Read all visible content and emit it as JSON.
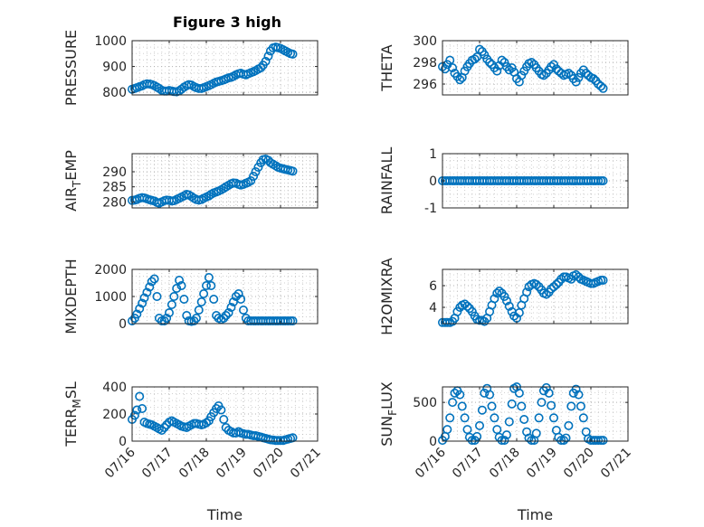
{
  "figure": {
    "title": "Figure 3 high"
  },
  "theme": {
    "marker_color": "#0072bd",
    "axis_color": "#262626",
    "grid_color": "#b0b0b0"
  },
  "chart_data": [
    {
      "type": "scatter",
      "ylabel": "PRESSURE",
      "ylim": [
        790,
        1000
      ],
      "yticks": [
        800,
        900,
        1000
      ],
      "xlim": [
        0,
        5
      ],
      "xticks": [
        0,
        1,
        2,
        3,
        4,
        5
      ],
      "show_xticklabels": false,
      "grid": true,
      "x": [
        0.0,
        0.07,
        0.13,
        0.2,
        0.27,
        0.33,
        0.4,
        0.47,
        0.53,
        0.6,
        0.67,
        0.73,
        0.8,
        0.87,
        0.93,
        1.0,
        1.07,
        1.13,
        1.2,
        1.27,
        1.33,
        1.4,
        1.47,
        1.53,
        1.6,
        1.67,
        1.73,
        1.8,
        1.87,
        1.93,
        2.0,
        2.07,
        2.13,
        2.2,
        2.27,
        2.33,
        2.4,
        2.47,
        2.53,
        2.6,
        2.67,
        2.73,
        2.8,
        2.87,
        2.93,
        3.0,
        3.07,
        3.13,
        3.2,
        3.27,
        3.33,
        3.4,
        3.47,
        3.53,
        3.6,
        3.67,
        3.73,
        3.8,
        3.87,
        3.93,
        4.0,
        4.07,
        4.13,
        4.2,
        4.27,
        4.33
      ],
      "y": [
        812,
        815,
        818,
        822,
        825,
        830,
        833,
        832,
        830,
        826,
        820,
        815,
        808,
        805,
        805,
        807,
        805,
        803,
        802,
        806,
        812,
        820,
        826,
        830,
        828,
        822,
        818,
        815,
        815,
        818,
        822,
        826,
        830,
        835,
        840,
        842,
        845,
        848,
        852,
        856,
        858,
        862,
        868,
        872,
        874,
        870,
        868,
        872,
        876,
        880,
        884,
        890,
        895,
        905,
        920,
        940,
        960,
        972,
        975,
        973,
        970,
        965,
        960,
        955,
        950,
        948
      ]
    },
    {
      "type": "scatter",
      "ylabel": "THETA",
      "ylim": [
        295,
        300
      ],
      "yticks": [
        296,
        298,
        300
      ],
      "xlim": [
        0,
        5
      ],
      "xticks": [
        0,
        1,
        2,
        3,
        4,
        5
      ],
      "show_xticklabels": false,
      "grid": true,
      "x": [
        0.0,
        0.07,
        0.13,
        0.2,
        0.27,
        0.33,
        0.4,
        0.47,
        0.53,
        0.6,
        0.67,
        0.73,
        0.8,
        0.87,
        0.93,
        1.0,
        1.07,
        1.13,
        1.2,
        1.27,
        1.33,
        1.4,
        1.47,
        1.53,
        1.6,
        1.67,
        1.73,
        1.8,
        1.87,
        1.93,
        2.0,
        2.07,
        2.13,
        2.2,
        2.27,
        2.33,
        2.4,
        2.47,
        2.53,
        2.6,
        2.67,
        2.73,
        2.8,
        2.87,
        2.93,
        3.0,
        3.07,
        3.13,
        3.2,
        3.27,
        3.33,
        3.4,
        3.47,
        3.53,
        3.6,
        3.67,
        3.73,
        3.8,
        3.87,
        3.93,
        4.0,
        4.07,
        4.13,
        4.2,
        4.27,
        4.33
      ],
      "y": [
        297.6,
        297.4,
        297.8,
        298.2,
        297.5,
        297.0,
        296.7,
        296.4,
        296.6,
        297.2,
        297.6,
        297.9,
        298.2,
        298.3,
        298.5,
        299.2,
        299.0,
        298.7,
        298.3,
        298.0,
        297.8,
        297.5,
        297.2,
        297.7,
        298.2,
        298.0,
        297.6,
        297.3,
        297.5,
        297.1,
        296.5,
        296.2,
        296.8,
        297.2,
        297.6,
        297.9,
        298.0,
        297.8,
        297.5,
        297.2,
        296.9,
        296.8,
        297.0,
        297.3,
        297.6,
        297.8,
        297.4,
        297.2,
        297.0,
        296.8,
        296.9,
        297.0,
        296.8,
        296.5,
        296.2,
        296.6,
        297.0,
        297.3,
        297.0,
        296.8,
        296.6,
        296.5,
        296.3,
        296.0,
        295.8,
        295.6
      ]
    },
    {
      "type": "scatter",
      "ylabel": "AIR_TEMP",
      "ylim": [
        278,
        296
      ],
      "yticks": [
        280,
        285,
        290
      ],
      "xlim": [
        0,
        5
      ],
      "xticks": [
        0,
        1,
        2,
        3,
        4,
        5
      ],
      "show_xticklabels": false,
      "grid": true,
      "x": [
        0.0,
        0.07,
        0.13,
        0.2,
        0.27,
        0.33,
        0.4,
        0.47,
        0.53,
        0.6,
        0.67,
        0.73,
        0.8,
        0.87,
        0.93,
        1.0,
        1.07,
        1.13,
        1.2,
        1.27,
        1.33,
        1.4,
        1.47,
        1.53,
        1.6,
        1.67,
        1.73,
        1.8,
        1.87,
        1.93,
        2.0,
        2.07,
        2.13,
        2.2,
        2.27,
        2.33,
        2.4,
        2.47,
        2.53,
        2.6,
        2.67,
        2.73,
        2.8,
        2.87,
        2.93,
        3.0,
        3.07,
        3.13,
        3.2,
        3.27,
        3.33,
        3.4,
        3.47,
        3.53,
        3.6,
        3.67,
        3.73,
        3.8,
        3.87,
        3.93,
        4.0,
        4.07,
        4.13,
        4.2,
        4.27,
        4.33
      ],
      "y": [
        280.5,
        280.6,
        280.8,
        281.2,
        281.4,
        281.3,
        281.0,
        280.7,
        280.5,
        280.3,
        279.8,
        279.6,
        280.0,
        280.4,
        280.6,
        280.5,
        280.3,
        280.4,
        280.8,
        281.2,
        281.6,
        282.0,
        282.5,
        282.3,
        281.8,
        281.2,
        280.8,
        280.6,
        280.8,
        281.2,
        281.6,
        282.0,
        282.5,
        283.0,
        283.3,
        283.6,
        284.0,
        284.5,
        285.0,
        285.5,
        286.0,
        286.3,
        286.2,
        285.8,
        285.6,
        285.8,
        286.2,
        286.5,
        287.0,
        288.5,
        290.0,
        291.5,
        293.0,
        294.0,
        294.2,
        293.8,
        293.0,
        292.5,
        292.0,
        291.5,
        291.2,
        291.0,
        290.8,
        290.6,
        290.4,
        290.2
      ]
    },
    {
      "type": "scatter",
      "ylabel": "RAINFALL",
      "ylim": [
        -1,
        1
      ],
      "yticks": [
        -1,
        0,
        1
      ],
      "xlim": [
        0,
        5
      ],
      "xticks": [
        0,
        1,
        2,
        3,
        4,
        5
      ],
      "show_xticklabels": false,
      "grid": true,
      "x": [
        0.0,
        0.07,
        0.13,
        0.2,
        0.27,
        0.33,
        0.4,
        0.47,
        0.53,
        0.6,
        0.67,
        0.73,
        0.8,
        0.87,
        0.93,
        1.0,
        1.07,
        1.13,
        1.2,
        1.27,
        1.33,
        1.4,
        1.47,
        1.53,
        1.6,
        1.67,
        1.73,
        1.8,
        1.87,
        1.93,
        2.0,
        2.07,
        2.13,
        2.2,
        2.27,
        2.33,
        2.4,
        2.47,
        2.53,
        2.6,
        2.67,
        2.73,
        2.8,
        2.87,
        2.93,
        3.0,
        3.07,
        3.13,
        3.2,
        3.27,
        3.33,
        3.4,
        3.47,
        3.53,
        3.6,
        3.67,
        3.73,
        3.8,
        3.87,
        3.93,
        4.0,
        4.07,
        4.13,
        4.2,
        4.27,
        4.33
      ],
      "y": [
        0,
        0,
        0,
        0,
        0,
        0,
        0,
        0,
        0,
        0,
        0,
        0,
        0,
        0,
        0,
        0,
        0,
        0,
        0,
        0,
        0,
        0,
        0,
        0,
        0,
        0,
        0,
        0,
        0,
        0,
        0,
        0,
        0,
        0,
        0,
        0,
        0,
        0,
        0,
        0,
        0,
        0,
        0,
        0,
        0,
        0,
        0,
        0,
        0,
        0,
        0,
        0,
        0,
        0,
        0,
        0,
        0,
        0,
        0,
        0,
        0,
        0,
        0,
        0,
        0,
        0
      ]
    },
    {
      "type": "scatter",
      "ylabel": "MIXDEPTH",
      "ylim": [
        0,
        2000
      ],
      "yticks": [
        0,
        1000,
        2000
      ],
      "xlim": [
        0,
        5
      ],
      "xticks": [
        0,
        1,
        2,
        3,
        4,
        5
      ],
      "show_xticklabels": false,
      "grid": true,
      "x": [
        0.0,
        0.07,
        0.13,
        0.2,
        0.27,
        0.33,
        0.4,
        0.47,
        0.53,
        0.6,
        0.67,
        0.73,
        0.8,
        0.87,
        0.93,
        1.0,
        1.07,
        1.13,
        1.2,
        1.27,
        1.33,
        1.4,
        1.47,
        1.53,
        1.6,
        1.67,
        1.73,
        1.8,
        1.87,
        1.93,
        2.0,
        2.07,
        2.13,
        2.2,
        2.27,
        2.33,
        2.4,
        2.47,
        2.53,
        2.6,
        2.67,
        2.73,
        2.8,
        2.87,
        2.93,
        3.0,
        3.07,
        3.13,
        3.2,
        3.27,
        3.33,
        3.4,
        3.47,
        3.53,
        3.6,
        3.67,
        3.73,
        3.8,
        3.87,
        3.93,
        4.0,
        4.07,
        4.13,
        4.2,
        4.27,
        4.33
      ],
      "y": [
        100,
        200,
        350,
        550,
        750,
        950,
        1150,
        1350,
        1550,
        1650,
        1000,
        200,
        100,
        100,
        200,
        400,
        700,
        1000,
        1300,
        1600,
        1400,
        900,
        300,
        100,
        80,
        100,
        200,
        500,
        800,
        1100,
        1400,
        1700,
        1400,
        900,
        300,
        200,
        150,
        200,
        300,
        400,
        600,
        800,
        1000,
        1100,
        900,
        500,
        200,
        100,
        100,
        100,
        100,
        100,
        100,
        100,
        100,
        100,
        100,
        100,
        100,
        100,
        100,
        100,
        100,
        100,
        100,
        100
      ]
    },
    {
      "type": "scatter",
      "ylabel": "H2OMIXRA",
      "ylim": [
        2.5,
        7.5
      ],
      "yticks": [
        4,
        6
      ],
      "xlim": [
        0,
        5
      ],
      "xticks": [
        0,
        1,
        2,
        3,
        4,
        5
      ],
      "show_xticklabels": false,
      "grid": true,
      "x": [
        0.0,
        0.07,
        0.13,
        0.2,
        0.27,
        0.33,
        0.4,
        0.47,
        0.53,
        0.6,
        0.67,
        0.73,
        0.8,
        0.87,
        0.93,
        1.0,
        1.07,
        1.13,
        1.2,
        1.27,
        1.33,
        1.4,
        1.47,
        1.53,
        1.6,
        1.67,
        1.73,
        1.8,
        1.87,
        1.93,
        2.0,
        2.07,
        2.13,
        2.2,
        2.27,
        2.33,
        2.4,
        2.47,
        2.53,
        2.6,
        2.67,
        2.73,
        2.8,
        2.87,
        2.93,
        3.0,
        3.07,
        3.13,
        3.2,
        3.27,
        3.33,
        3.4,
        3.47,
        3.53,
        3.6,
        3.67,
        3.73,
        3.8,
        3.87,
        3.93,
        4.0,
        4.07,
        4.13,
        4.2,
        4.27,
        4.33
      ],
      "y": [
        2.6,
        2.6,
        2.6,
        2.6,
        2.7,
        3.0,
        3.6,
        4.0,
        4.2,
        4.3,
        4.1,
        3.9,
        3.6,
        3.2,
        2.9,
        2.8,
        2.8,
        2.7,
        3.0,
        3.6,
        4.2,
        4.8,
        5.3,
        5.5,
        5.3,
        5.0,
        4.6,
        4.1,
        3.6,
        3.2,
        3.0,
        3.5,
        4.2,
        4.8,
        5.4,
        5.9,
        6.1,
        6.2,
        6.1,
        5.9,
        5.6,
        5.3,
        5.2,
        5.4,
        5.7,
        5.9,
        6.1,
        6.3,
        6.6,
        6.8,
        6.8,
        6.7,
        6.6,
        6.9,
        7.0,
        6.8,
        6.6,
        6.5,
        6.4,
        6.3,
        6.2,
        6.2,
        6.3,
        6.4,
        6.5,
        6.5
      ]
    },
    {
      "type": "scatter",
      "ylabel": "TERR_MSL",
      "ylim": [
        0,
        400
      ],
      "yticks": [
        0,
        200,
        400
      ],
      "xlim": [
        0,
        5
      ],
      "xticks": [
        0,
        1,
        2,
        3,
        4,
        5
      ],
      "show_xticklabels": true,
      "grid": true,
      "xticklabels": [
        "07/16",
        "07/17",
        "07/18",
        "07/19",
        "07/20",
        "07/21"
      ],
      "xlabel": "Time",
      "x": [
        0.0,
        0.07,
        0.13,
        0.2,
        0.27,
        0.33,
        0.4,
        0.47,
        0.53,
        0.6,
        0.67,
        0.73,
        0.8,
        0.87,
        0.93,
        1.0,
        1.07,
        1.13,
        1.2,
        1.27,
        1.33,
        1.4,
        1.47,
        1.53,
        1.6,
        1.67,
        1.73,
        1.8,
        1.87,
        1.93,
        2.0,
        2.07,
        2.13,
        2.2,
        2.27,
        2.33,
        2.4,
        2.47,
        2.53,
        2.6,
        2.67,
        2.73,
        2.8,
        2.87,
        2.93,
        3.0,
        3.07,
        3.13,
        3.2,
        3.27,
        3.33,
        3.4,
        3.47,
        3.53,
        3.6,
        3.67,
        3.73,
        3.8,
        3.87,
        3.93,
        4.0,
        4.07,
        4.13,
        4.2,
        4.27,
        4.33
      ],
      "y": [
        160,
        190,
        230,
        330,
        240,
        140,
        130,
        125,
        120,
        110,
        100,
        90,
        80,
        100,
        120,
        140,
        150,
        140,
        130,
        120,
        110,
        105,
        100,
        110,
        120,
        130,
        130,
        125,
        120,
        125,
        135,
        150,
        180,
        210,
        240,
        260,
        230,
        160,
        100,
        80,
        70,
        60,
        60,
        70,
        60,
        55,
        50,
        50,
        45,
        40,
        40,
        35,
        30,
        25,
        20,
        15,
        10,
        8,
        5,
        5,
        5,
        5,
        10,
        15,
        20,
        25
      ]
    },
    {
      "type": "scatter",
      "ylabel": "SUN_FLUX",
      "ylim": [
        0,
        700
      ],
      "yticks": [
        0,
        500
      ],
      "xlim": [
        0,
        5
      ],
      "xticks": [
        0,
        1,
        2,
        3,
        4,
        5
      ],
      "show_xticklabels": true,
      "grid": true,
      "xticklabels": [
        "07/16",
        "07/17",
        "07/18",
        "07/19",
        "07/20",
        "07/21"
      ],
      "xlabel": "Time",
      "x": [
        0.0,
        0.07,
        0.13,
        0.2,
        0.27,
        0.33,
        0.4,
        0.47,
        0.53,
        0.6,
        0.67,
        0.73,
        0.8,
        0.87,
        0.93,
        1.0,
        1.07,
        1.13,
        1.2,
        1.27,
        1.33,
        1.4,
        1.47,
        1.53,
        1.6,
        1.67,
        1.73,
        1.8,
        1.87,
        1.93,
        2.0,
        2.07,
        2.13,
        2.2,
        2.27,
        2.33,
        2.4,
        2.47,
        2.53,
        2.6,
        2.67,
        2.73,
        2.8,
        2.87,
        2.93,
        3.0,
        3.07,
        3.13,
        3.2,
        3.27,
        3.33,
        3.4,
        3.47,
        3.53,
        3.6,
        3.67,
        3.73,
        3.8,
        3.87,
        3.93,
        4.0,
        4.07,
        4.13,
        4.2,
        4.27,
        4.33
      ],
      "y": [
        10,
        60,
        150,
        300,
        500,
        620,
        650,
        600,
        450,
        300,
        150,
        50,
        10,
        10,
        60,
        200,
        400,
        620,
        680,
        600,
        450,
        300,
        150,
        50,
        10,
        10,
        80,
        250,
        480,
        680,
        700,
        620,
        450,
        280,
        120,
        40,
        10,
        10,
        100,
        300,
        500,
        650,
        690,
        620,
        460,
        300,
        140,
        50,
        10,
        10,
        40,
        200,
        450,
        620,
        670,
        600,
        450,
        300,
        120,
        30,
        10,
        10,
        10,
        10,
        10,
        10
      ]
    }
  ]
}
